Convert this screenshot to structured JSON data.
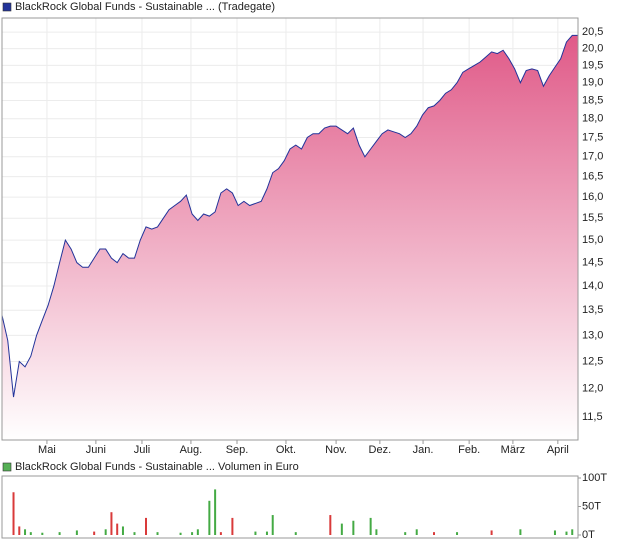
{
  "chart_data": [
    {
      "type": "area",
      "series": [
        {
          "name": "BlackRock Global Funds - Sustainable ... (Tradegate)",
          "color": "#22339a",
          "fill_color": "#e05a88",
          "values": [
            13.4,
            12.9,
            11.85,
            12.5,
            12.4,
            12.6,
            13.0,
            13.3,
            13.6,
            14.0,
            14.5,
            15.0,
            14.8,
            14.5,
            14.4,
            14.4,
            14.6,
            14.8,
            14.8,
            14.6,
            14.5,
            14.7,
            14.6,
            14.6,
            15.0,
            15.3,
            15.25,
            15.3,
            15.5,
            15.7,
            15.8,
            15.9,
            16.05,
            15.6,
            15.45,
            15.6,
            15.55,
            15.65,
            16.1,
            16.2,
            16.1,
            15.8,
            15.9,
            15.8,
            15.85,
            15.9,
            16.2,
            16.6,
            16.7,
            16.9,
            17.2,
            17.3,
            17.2,
            17.5,
            17.6,
            17.6,
            17.75,
            17.8,
            17.8,
            17.7,
            17.6,
            17.75,
            17.3,
            17.0,
            17.2,
            17.4,
            17.6,
            17.7,
            17.65,
            17.6,
            17.5,
            17.6,
            17.8,
            18.1,
            18.3,
            18.35,
            18.5,
            18.7,
            18.8,
            19.0,
            19.3,
            19.4,
            19.5,
            19.6,
            19.75,
            19.9,
            19.85,
            19.95,
            19.7,
            19.4,
            19.0,
            19.35,
            19.4,
            19.35,
            18.9,
            19.2,
            19.45,
            19.7,
            20.2,
            20.4,
            20.4
          ]
        }
      ],
      "log_scale": true,
      "grid": true,
      "xlim": [
        0,
        100
      ],
      "xticks": [
        {
          "value": 7.8,
          "label": "Mai"
        },
        {
          "value": 16.3,
          "label": "Juni"
        },
        {
          "value": 24.3,
          "label": "Juli"
        },
        {
          "value": 32.8,
          "label": "Aug."
        },
        {
          "value": 40.8,
          "label": "Sep."
        },
        {
          "value": 49.3,
          "label": "Okt."
        },
        {
          "value": 58,
          "label": "Nov."
        },
        {
          "value": 65.6,
          "label": "Dez."
        },
        {
          "value": 73.1,
          "label": "Jan."
        },
        {
          "value": 81.1,
          "label": "Feb."
        },
        {
          "value": 88.7,
          "label": "März"
        },
        {
          "value": 96.5,
          "label": "April"
        }
      ],
      "ylim": [
        11.11,
        20.94
      ],
      "yticks": [
        {
          "value": 11.5,
          "label": "11,5"
        },
        {
          "value": 12,
          "label": "12,0"
        },
        {
          "value": 12.5,
          "label": "12,5"
        },
        {
          "value": 13,
          "label": "13,0"
        },
        {
          "value": 13.5,
          "label": "13,5"
        },
        {
          "value": 14,
          "label": "14,0"
        },
        {
          "value": 14.5,
          "label": "14,5"
        },
        {
          "value": 15,
          "label": "15,0"
        },
        {
          "value": 15.5,
          "label": "15,5"
        },
        {
          "value": 16,
          "label": "16,0"
        },
        {
          "value": 16.5,
          "label": "16,5"
        },
        {
          "value": 17,
          "label": "17,0"
        },
        {
          "value": 17.5,
          "label": "17,5"
        },
        {
          "value": 18,
          "label": "18,0"
        },
        {
          "value": 18.5,
          "label": "18,5"
        },
        {
          "value": 19,
          "label": "19,0"
        },
        {
          "value": 19.5,
          "label": "19,5"
        },
        {
          "value": 20,
          "label": "20,0"
        },
        {
          "value": 20.5,
          "label": "20,5"
        }
      ]
    },
    {
      "type": "bar",
      "series": [
        {
          "name": "BlackRock Global Funds - Sustainable ... Volumen in Euro",
          "color": "#55b055",
          "x": [
            2,
            3,
            4,
            5,
            7,
            10,
            13,
            16,
            18,
            19,
            20,
            21,
            23,
            25,
            27,
            31,
            33,
            34,
            36,
            37,
            38,
            40,
            44,
            46,
            47,
            51,
            57,
            59,
            61,
            64,
            65,
            70,
            72,
            75,
            79,
            85,
            90,
            96,
            98,
            99
          ],
          "values": [
            75000,
            15000,
            10000,
            5000,
            4000,
            5000,
            8000,
            6000,
            10000,
            40000,
            20000,
            15000,
            5000,
            30000,
            5000,
            4000,
            5000,
            10000,
            60000,
            80000,
            5000,
            30000,
            6000,
            6000,
            35000,
            5000,
            35000,
            20000,
            25000,
            30000,
            10000,
            5000,
            10000,
            5000,
            5000,
            8000,
            10000,
            8000,
            6000,
            10000
          ],
          "colors": [
            "#d93a3a",
            "#d93a3a",
            "#44aa44",
            "#44aa44",
            "#44aa44",
            "#44aa44",
            "#44aa44",
            "#d93a3a",
            "#44aa44",
            "#d93a3a",
            "#d93a3a",
            "#44aa44",
            "#44aa44",
            "#d93a3a",
            "#44aa44",
            "#44aa44",
            "#44aa44",
            "#44aa44",
            "#44aa44",
            "#44aa44",
            "#d93a3a",
            "#d93a3a",
            "#44aa44",
            "#44aa44",
            "#44aa44",
            "#44aa44",
            "#d93a3a",
            "#44aa44",
            "#44aa44",
            "#44aa44",
            "#44aa44",
            "#44aa44",
            "#44aa44",
            "#d93a3a",
            "#44aa44",
            "#d93a3a",
            "#44aa44",
            "#44aa44",
            "#44aa44",
            "#44aa44"
          ]
        }
      ],
      "xlim": [
        0,
        100
      ],
      "ylim": [
        0,
        100000
      ],
      "yticks": [
        {
          "value": 0,
          "label": "0T"
        },
        {
          "value": 50000,
          "label": "50T"
        },
        {
          "value": 100000,
          "label": "100T"
        }
      ]
    }
  ]
}
